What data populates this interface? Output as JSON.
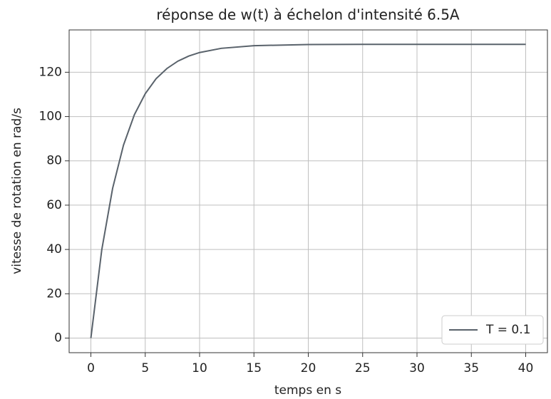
{
  "chart_data": {
    "type": "line",
    "title": "réponse de w(t) à échelon d'intensité 6.5A",
    "xlabel": "temps en s",
    "ylabel": "vitesse de rotation en rad/s",
    "x": [
      0,
      1,
      2,
      3,
      4,
      5,
      6,
      7,
      8,
      9,
      10,
      12,
      15,
      20,
      25,
      30,
      35,
      40
    ],
    "series": [
      {
        "name": "T = 0.1",
        "color": "#59626b",
        "values": [
          0,
          39.8,
          67.6,
          87.1,
          100.8,
          110.3,
          117.1,
          121.7,
          125.0,
          127.3,
          128.9,
          130.8,
          132.0,
          132.5,
          132.6,
          132.6,
          132.6,
          132.6
        ]
      }
    ],
    "xlim": [
      -2,
      42
    ],
    "ylim": [
      -6.6,
      139.1
    ],
    "xticks": [
      0,
      5,
      10,
      15,
      20,
      25,
      30,
      35,
      40
    ],
    "yticks": [
      0,
      20,
      40,
      60,
      80,
      100,
      120
    ],
    "grid": true,
    "legend": "lower right"
  }
}
